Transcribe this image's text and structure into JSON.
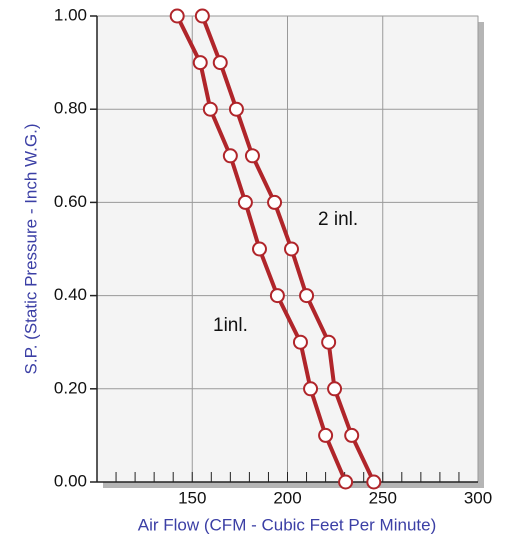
{
  "chart_data": {
    "type": "line",
    "xlabel": "Air Flow (CFM - Cubic Feet Per Minute)",
    "ylabel": "S.P. (Static Pressure - Inch W.G.)",
    "xlim": [
      100,
      300
    ],
    "ylim": [
      0,
      1
    ],
    "xticks": [
      150,
      200,
      250,
      300
    ],
    "xminorticks": [
      110,
      120,
      130,
      140,
      150,
      160,
      170,
      180,
      190,
      200,
      210,
      220,
      230,
      240,
      250,
      260,
      270,
      280,
      290
    ],
    "yticks": [
      {
        "value": 0,
        "label": "0.00"
      },
      {
        "value": 0.2,
        "label": "0.20"
      },
      {
        "value": 0.4,
        "label": "0.40"
      },
      {
        "value": 0.6,
        "label": "0.60"
      },
      {
        "value": 0.8,
        "label": "0.80"
      },
      {
        "value": 1,
        "label": "1.00"
      }
    ],
    "grid": true,
    "series": [
      {
        "name": "1inl.",
        "color": "#b0252a",
        "x": [
          142.1,
          154.2,
          159.5,
          170,
          177.9,
          185.3,
          194.7,
          206.8,
          212.1,
          220,
          230.5
        ],
        "values": [
          1,
          0.9,
          0.8,
          0.7,
          0.6,
          0.5,
          0.4,
          0.3,
          0.2,
          0.1,
          0
        ]
      },
      {
        "name": "2 inl.",
        "color": "#b0252a",
        "x": [
          155.3,
          164.7,
          173.2,
          181.6,
          193.2,
          202.1,
          210,
          221.6,
          224.7,
          233.7,
          245.3
        ],
        "values": [
          1,
          0.9,
          0.8,
          0.7,
          0.6,
          0.5,
          0.4,
          0.3,
          0.2,
          0.1,
          0
        ]
      }
    ]
  }
}
